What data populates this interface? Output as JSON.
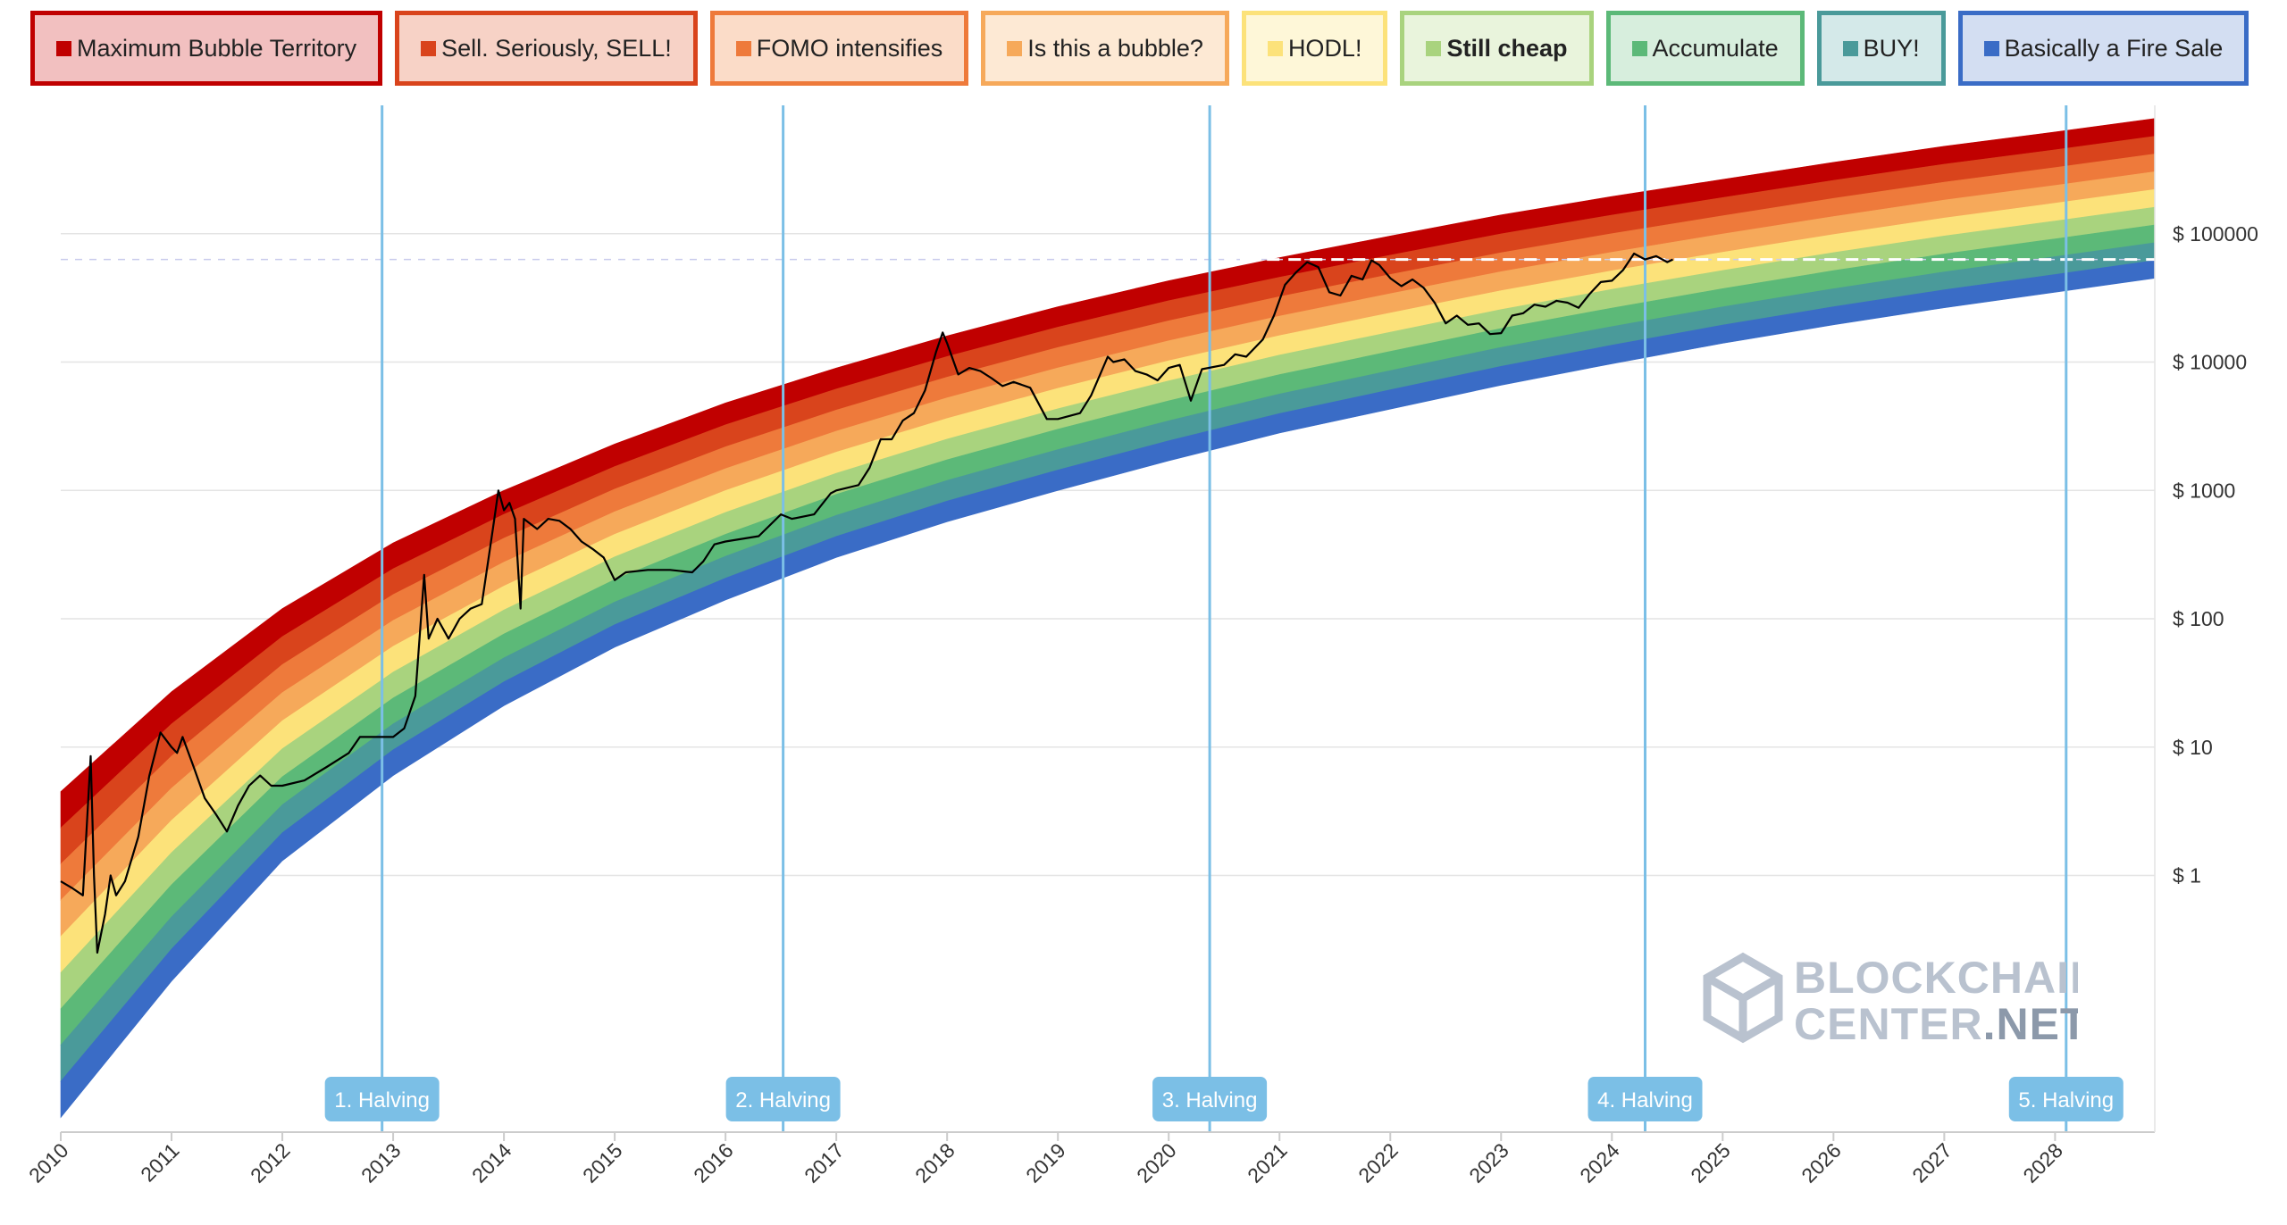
{
  "legend": [
    {
      "label": "Maximum Bubble Territory",
      "color": "#c00000",
      "bg": "#f2c0c0",
      "border": "#c00000",
      "bold": false
    },
    {
      "label": "Sell. Seriously, SELL!",
      "color": "#d9441c",
      "bg": "#f7d2c6",
      "border": "#d9441c",
      "bold": false
    },
    {
      "label": "FOMO intensifies",
      "color": "#ee7a3b",
      "bg": "#fbdcc8",
      "border": "#ee7a3b",
      "bold": false
    },
    {
      "label": "Is this a bubble?",
      "color": "#f6a95a",
      "bg": "#fde9d4",
      "border": "#f6a95a",
      "bold": false
    },
    {
      "label": "HODL!",
      "color": "#fce27a",
      "bg": "#fef7d8",
      "border": "#fce27a",
      "bold": false
    },
    {
      "label": "Still cheap",
      "color": "#a9d37e",
      "bg": "#e9f4dc",
      "border": "#a9d37e",
      "bold": true
    },
    {
      "label": "Accumulate",
      "color": "#5cb978",
      "bg": "#d7eedd",
      "border": "#5cb978",
      "bold": false
    },
    {
      "label": "BUY!",
      "color": "#4a9a9a",
      "bg": "#d4e9e9",
      "border": "#4a9a9a",
      "bold": false
    },
    {
      "label": "Basically a Fire Sale",
      "color": "#3a6cc6",
      "bg": "#d3def2",
      "border": "#3a6cc6",
      "bold": false
    }
  ],
  "chart_data": {
    "type": "area",
    "yscale": "log",
    "xlim": [
      2010.0,
      2028.9
    ],
    "ylim": [
      0.01,
      1000000
    ],
    "x_ticks": [
      "2010",
      "2011",
      "2012",
      "2013",
      "2014",
      "2015",
      "2016",
      "2017",
      "2018",
      "2019",
      "2020",
      "2021",
      "2022",
      "2023",
      "2024",
      "2025",
      "2026",
      "2027",
      "2028"
    ],
    "y_ticks": [
      {
        "value": 1,
        "label": "$ 1"
      },
      {
        "value": 10,
        "label": "$ 10"
      },
      {
        "value": 100,
        "label": "$ 100"
      },
      {
        "value": 1000,
        "label": "$ 1000"
      },
      {
        "value": 10000,
        "label": "$ 10000"
      },
      {
        "value": 100000,
        "label": "$ 100000"
      }
    ],
    "band_colors": [
      "#c00000",
      "#d9441c",
      "#ee7a3b",
      "#f6a95a",
      "#fce27a",
      "#a9d37e",
      "#5cb978",
      "#4a9a9a",
      "#3a6cc6"
    ],
    "rainbow_edges": [
      {
        "x": 2010.0,
        "top": 4.5,
        "bottom": 0.013
      },
      {
        "x": 2011.0,
        "top": 27,
        "bottom": 0.15
      },
      {
        "x": 2012.0,
        "top": 120,
        "bottom": 1.3
      },
      {
        "x": 2013.0,
        "top": 390,
        "bottom": 6
      },
      {
        "x": 2014.0,
        "top": 1000,
        "bottom": 21
      },
      {
        "x": 2015.0,
        "top": 2300,
        "bottom": 60
      },
      {
        "x": 2016.0,
        "top": 4800,
        "bottom": 140
      },
      {
        "x": 2017.0,
        "top": 9000,
        "bottom": 300
      },
      {
        "x": 2018.0,
        "top": 16000,
        "bottom": 570
      },
      {
        "x": 2019.0,
        "top": 27000,
        "bottom": 1000
      },
      {
        "x": 2020.0,
        "top": 43000,
        "bottom": 1700
      },
      {
        "x": 2021.0,
        "top": 65000,
        "bottom": 2800
      },
      {
        "x": 2022.0,
        "top": 96000,
        "bottom": 4300
      },
      {
        "x": 2023.0,
        "top": 140000,
        "bottom": 6600
      },
      {
        "x": 2024.0,
        "top": 195000,
        "bottom": 9700
      },
      {
        "x": 2025.0,
        "top": 265000,
        "bottom": 14000
      },
      {
        "x": 2026.0,
        "top": 360000,
        "bottom": 19500
      },
      {
        "x": 2027.0,
        "top": 480000,
        "bottom": 26500
      },
      {
        "x": 2028.0,
        "top": 620000,
        "bottom": 35000
      },
      {
        "x": 2028.9,
        "top": 790000,
        "bottom": 45000
      }
    ],
    "series": [
      {
        "color": "#000000",
        "points": [
          [
            2010.0,
            0.9
          ],
          [
            2010.1,
            0.8
          ],
          [
            2010.2,
            0.7
          ],
          [
            2010.27,
            8.5
          ],
          [
            2010.3,
            1.0
          ],
          [
            2010.33,
            0.25
          ],
          [
            2010.4,
            0.5
          ],
          [
            2010.45,
            1.0
          ],
          [
            2010.5,
            0.7
          ],
          [
            2010.58,
            0.9
          ],
          [
            2010.7,
            2.0
          ],
          [
            2010.8,
            6.0
          ],
          [
            2010.9,
            13
          ],
          [
            2011.0,
            10
          ],
          [
            2011.05,
            9
          ],
          [
            2011.1,
            12
          ],
          [
            2011.2,
            7
          ],
          [
            2011.3,
            4
          ],
          [
            2011.4,
            3
          ],
          [
            2011.5,
            2.2
          ],
          [
            2011.6,
            3.5
          ],
          [
            2011.7,
            5
          ],
          [
            2011.8,
            6
          ],
          [
            2011.9,
            5
          ],
          [
            2012.0,
            5
          ],
          [
            2012.2,
            5.5
          ],
          [
            2012.4,
            7
          ],
          [
            2012.6,
            9
          ],
          [
            2012.7,
            12
          ],
          [
            2012.8,
            12
          ],
          [
            2013.0,
            12
          ],
          [
            2013.1,
            14
          ],
          [
            2013.2,
            25
          ],
          [
            2013.28,
            220
          ],
          [
            2013.32,
            70
          ],
          [
            2013.4,
            100
          ],
          [
            2013.5,
            70
          ],
          [
            2013.6,
            100
          ],
          [
            2013.7,
            120
          ],
          [
            2013.8,
            130
          ],
          [
            2013.9,
            500
          ],
          [
            2013.95,
            1000
          ],
          [
            2014.0,
            700
          ],
          [
            2014.05,
            800
          ],
          [
            2014.1,
            600
          ],
          [
            2014.15,
            120
          ],
          [
            2014.18,
            600
          ],
          [
            2014.3,
            500
          ],
          [
            2014.4,
            600
          ],
          [
            2014.5,
            580
          ],
          [
            2014.6,
            500
          ],
          [
            2014.7,
            400
          ],
          [
            2014.8,
            350
          ],
          [
            2014.9,
            300
          ],
          [
            2015.0,
            200
          ],
          [
            2015.1,
            230
          ],
          [
            2015.3,
            240
          ],
          [
            2015.5,
            240
          ],
          [
            2015.7,
            230
          ],
          [
            2015.8,
            280
          ],
          [
            2015.9,
            380
          ],
          [
            2016.0,
            400
          ],
          [
            2016.3,
            440
          ],
          [
            2016.5,
            650
          ],
          [
            2016.6,
            600
          ],
          [
            2016.8,
            650
          ],
          [
            2016.95,
            950
          ],
          [
            2017.0,
            1000
          ],
          [
            2017.2,
            1100
          ],
          [
            2017.3,
            1500
          ],
          [
            2017.4,
            2500
          ],
          [
            2017.5,
            2500
          ],
          [
            2017.6,
            3500
          ],
          [
            2017.7,
            4000
          ],
          [
            2017.8,
            6000
          ],
          [
            2017.9,
            12000
          ],
          [
            2017.96,
            17000
          ],
          [
            2018.0,
            14000
          ],
          [
            2018.1,
            8000
          ],
          [
            2018.2,
            9000
          ],
          [
            2018.3,
            8500
          ],
          [
            2018.4,
            7500
          ],
          [
            2018.5,
            6500
          ],
          [
            2018.6,
            7000
          ],
          [
            2018.75,
            6300
          ],
          [
            2018.9,
            3600
          ],
          [
            2019.0,
            3600
          ],
          [
            2019.2,
            4000
          ],
          [
            2019.3,
            5500
          ],
          [
            2019.45,
            11000
          ],
          [
            2019.5,
            10000
          ],
          [
            2019.6,
            10500
          ],
          [
            2019.7,
            8500
          ],
          [
            2019.8,
            8000
          ],
          [
            2019.9,
            7200
          ],
          [
            2020.0,
            9000
          ],
          [
            2020.1,
            9500
          ],
          [
            2020.2,
            5000
          ],
          [
            2020.3,
            8800
          ],
          [
            2020.5,
            9500
          ],
          [
            2020.6,
            11500
          ],
          [
            2020.7,
            11000
          ],
          [
            2020.85,
            15000
          ],
          [
            2020.95,
            23000
          ],
          [
            2021.05,
            40000
          ],
          [
            2021.15,
            50000
          ],
          [
            2021.25,
            60000
          ],
          [
            2021.35,
            55000
          ],
          [
            2021.45,
            35000
          ],
          [
            2021.55,
            33000
          ],
          [
            2021.65,
            47000
          ],
          [
            2021.75,
            44000
          ],
          [
            2021.83,
            62000
          ],
          [
            2021.9,
            57000
          ],
          [
            2022.0,
            45000
          ],
          [
            2022.1,
            39000
          ],
          [
            2022.2,
            44000
          ],
          [
            2022.3,
            38000
          ],
          [
            2022.4,
            29000
          ],
          [
            2022.5,
            20000
          ],
          [
            2022.6,
            23000
          ],
          [
            2022.7,
            19500
          ],
          [
            2022.8,
            20000
          ],
          [
            2022.9,
            16500
          ],
          [
            2023.0,
            16800
          ],
          [
            2023.1,
            23000
          ],
          [
            2023.2,
            24000
          ],
          [
            2023.3,
            28000
          ],
          [
            2023.4,
            27000
          ],
          [
            2023.5,
            30000
          ],
          [
            2023.6,
            29000
          ],
          [
            2023.7,
            26500
          ],
          [
            2023.8,
            34000
          ],
          [
            2023.9,
            42000
          ],
          [
            2024.0,
            43000
          ],
          [
            2024.1,
            52000
          ],
          [
            2024.2,
            70000
          ],
          [
            2024.3,
            63000
          ],
          [
            2024.4,
            67000
          ],
          [
            2024.5,
            60000
          ],
          [
            2024.55,
            63000
          ]
        ]
      }
    ],
    "reference_line": {
      "value": 63000,
      "from_x": 2020.5,
      "to_x": 2028.9
    },
    "halvings": [
      {
        "x": 2012.9,
        "label": "1. Halving"
      },
      {
        "x": 2016.52,
        "label": "2. Halving"
      },
      {
        "x": 2020.37,
        "label": "3. Halving"
      },
      {
        "x": 2024.3,
        "label": "4. Halving"
      },
      {
        "x": 2028.1,
        "label": "5. Halving"
      }
    ]
  },
  "watermark": {
    "line1": "BLOCKCHAIN",
    "line2_a": "CENTER",
    "line2_b": ".NET"
  }
}
